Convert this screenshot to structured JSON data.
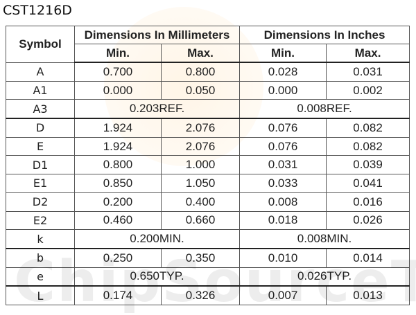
{
  "title": "CST1216D",
  "watermark": "ChipSourceTek",
  "table": {
    "header": {
      "symbol": "Symbol",
      "mm": "Dimensions In Millimeters",
      "in": "Dimensions In Inches",
      "sub": [
        "Min.",
        "Max.",
        "Min.",
        "Max."
      ]
    },
    "rows": [
      [
        "A",
        "0.700",
        "0.800",
        "0.028",
        "0.031"
      ],
      [
        "A1",
        "0.000",
        "0.050",
        "0.000",
        "0.002"
      ],
      [
        "A3",
        "0.203REF.",
        "0.008REF."
      ],
      [
        "D",
        "1.924",
        "2.076",
        "0.076",
        "0.082"
      ],
      [
        "E",
        "1.924",
        "2.076",
        "0.076",
        "0.082"
      ],
      [
        "D1",
        "0.800",
        "1.000",
        "0.031",
        "0.039"
      ],
      [
        "E1",
        "0.850",
        "1.050",
        "0.033",
        "0.041"
      ],
      [
        "D2",
        "0.200",
        "0.400",
        "0.008",
        "0.016"
      ],
      [
        "E2",
        "0.460",
        "0.660",
        "0.018",
        "0.026"
      ],
      [
        "k",
        "0.200MIN.",
        "0.008MIN."
      ],
      [
        "b",
        "0.250",
        "0.350",
        "0.010",
        "0.014"
      ],
      [
        "e",
        "0.650TYP.",
        "0.026TYP."
      ],
      [
        "L",
        "0.174",
        "0.326",
        "0.007",
        "0.013"
      ]
    ]
  }
}
